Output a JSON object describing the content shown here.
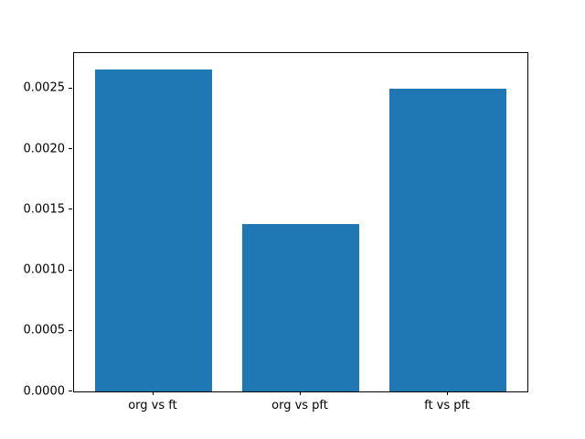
{
  "chart_data": {
    "type": "bar",
    "categories": [
      "org vs ft",
      "org vs pft",
      "ft vs pft"
    ],
    "values": [
      0.00266,
      0.00138,
      0.0025
    ],
    "title": "",
    "xlabel": "",
    "ylabel": "",
    "ylim": [
      0,
      0.002793
    ],
    "xlim": [
      -0.54,
      2.54
    ],
    "yticks": [
      0.0,
      0.0005,
      0.001,
      0.0015,
      0.002,
      0.0025
    ],
    "ytick_labels": [
      "0.0000",
      "0.0005",
      "0.0010",
      "0.0015",
      "0.0020",
      "0.0025"
    ],
    "bar_color": "#1f77b4",
    "bar_width_fraction": 0.8,
    "grid": false,
    "legend_visible": false,
    "spine_color": "#000000",
    "background_color": "#ffffff"
  }
}
